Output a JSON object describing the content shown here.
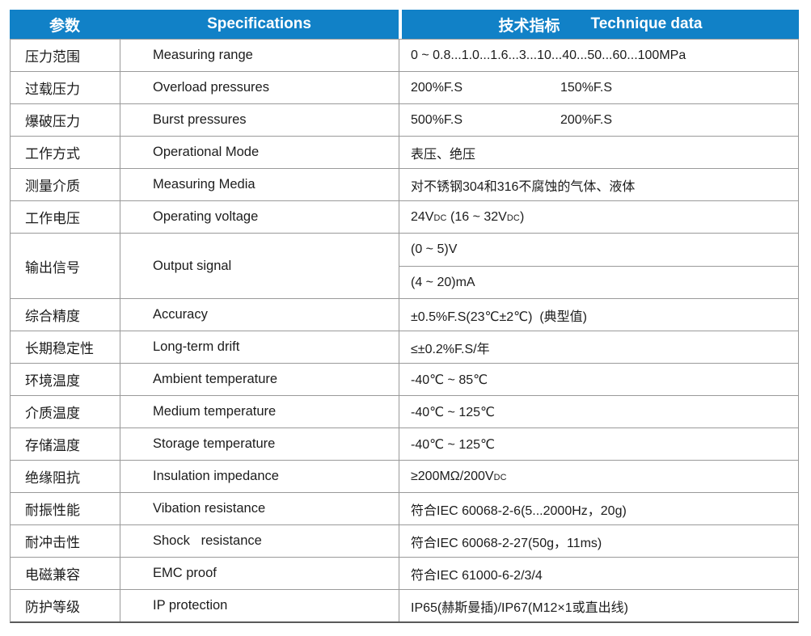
{
  "colors": {
    "header_bg": "#1181c7",
    "header_text": "#ffffff",
    "body_text": "#1c1c1c",
    "grid_line": "#9a9a9a",
    "outer_line": "#5a5a5a"
  },
  "header": {
    "param": "参数",
    "spec": "Specifications",
    "tech_cn": "技术指标",
    "tech_en": "Technique data"
  },
  "table": {
    "rows": [
      {
        "param": "压力范围",
        "spec": "Measuring range",
        "tech": {
          "layout": "single",
          "values": [
            "0 ~ 0.8...1.0...1.6...3...10...40...50...60...100MPa"
          ]
        }
      },
      {
        "param": "过载压力",
        "spec": "Overload pressures",
        "tech": {
          "layout": "inline",
          "values": [
            "200%F.S",
            "150%F.S"
          ]
        }
      },
      {
        "param": "爆破压力",
        "spec": "Burst pressures",
        "tech": {
          "layout": "inline",
          "values": [
            "500%F.S",
            "200%F.S"
          ]
        }
      },
      {
        "param": "工作方式",
        "spec": "Operational Mode",
        "tech": {
          "layout": "single",
          "values": [
            "表压、绝压"
          ]
        }
      },
      {
        "param": "测量介质",
        "spec": "Measuring Media",
        "tech": {
          "layout": "single",
          "values": [
            "对不锈钢304和316不腐蚀的气体、液体"
          ]
        }
      },
      {
        "param": "工作电压",
        "spec": "Operating voltage",
        "tech": {
          "layout": "single",
          "values": [
            [
              "24V",
              {
                "t": "DC",
                "small": true
              },
              " (16 ~ 32V",
              {
                "t": "DC",
                "small": true
              },
              ")"
            ]
          ]
        }
      },
      {
        "param": "输出信号",
        "spec": "Output signal",
        "tech": {
          "layout": "stacked",
          "values": [
            "(0 ~ 5)V",
            "(4 ~ 20)mA"
          ]
        }
      },
      {
        "param": "综合精度",
        "spec": "Accuracy",
        "tech": {
          "layout": "single",
          "values": [
            "±0.5%F.S(23℃±2℃)  (典型值)"
          ]
        }
      },
      {
        "param": "长期稳定性",
        "spec": "Long-term drift",
        "tech": {
          "layout": "single",
          "values": [
            "≤±0.2%F.S/年"
          ]
        }
      },
      {
        "param": "环境温度",
        "spec": "Ambient temperature",
        "tech": {
          "layout": "single",
          "values": [
            "-40℃ ~ 85℃"
          ]
        }
      },
      {
        "param": "介质温度",
        "spec": "Medium temperature",
        "tech": {
          "layout": "single",
          "values": [
            "-40℃ ~ 125℃"
          ]
        }
      },
      {
        "param": "存储温度",
        "spec": "Storage temperature",
        "tech": {
          "layout": "single",
          "values": [
            "-40℃ ~ 125℃"
          ]
        }
      },
      {
        "param": "绝缘阻抗",
        "spec": "Insulation impedance",
        "tech": {
          "layout": "single",
          "values": [
            [
              "≥200MΩ/200V",
              {
                "t": "DC",
                "small": true
              }
            ]
          ]
        }
      },
      {
        "param": "耐振性能",
        "spec": "Vibation resistance",
        "tech": {
          "layout": "single",
          "values": [
            "符合IEC 60068-2-6(5...2000Hz，20g)"
          ]
        }
      },
      {
        "param": "耐冲击性",
        "spec": "Shock   resistance",
        "tech": {
          "layout": "single",
          "values": [
            "符合IEC 60068-2-27(50g，11ms)"
          ]
        }
      },
      {
        "param": "电磁兼容",
        "spec": "EMC proof",
        "tech": {
          "layout": "single",
          "values": [
            "符合IEC 61000-6-2/3/4"
          ]
        }
      },
      {
        "param": "防护等级",
        "spec": "IP protection",
        "tech": {
          "layout": "single",
          "values": [
            "IP65(赫斯曼插)/IP67(M12×1或直出线)"
          ]
        }
      }
    ]
  }
}
